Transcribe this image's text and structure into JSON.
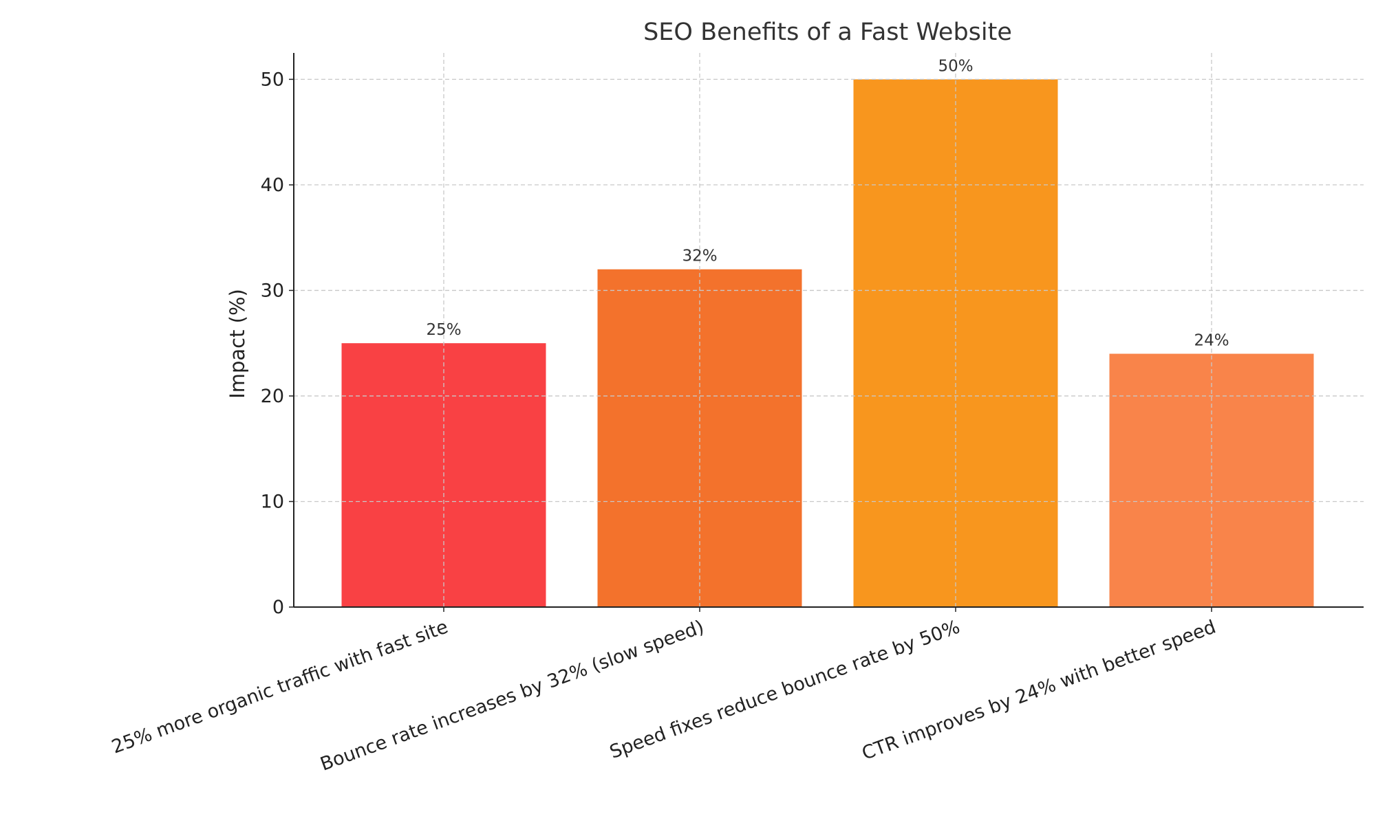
{
  "chart_data": {
    "type": "bar",
    "title": "SEO Benefits of a Fast Website",
    "xlabel": "",
    "ylabel": "Impact (%)",
    "categories": [
      "25% more organic traffic with fast site",
      "Bounce rate increases by 32% (slow speed)",
      "Speed fixes reduce bounce rate by 50%",
      "CTR improves by 24% with better speed"
    ],
    "values": [
      25,
      32,
      50,
      24
    ],
    "data_labels": [
      "25%",
      "32%",
      "50%",
      "24%"
    ],
    "colors": [
      "#F94144",
      "#F3722C",
      "#F8961E",
      "#F9844A"
    ],
    "ylim": [
      0,
      52.5
    ],
    "yticks": [
      0,
      10,
      20,
      30,
      40,
      50
    ],
    "grid": true,
    "legend": "none"
  }
}
